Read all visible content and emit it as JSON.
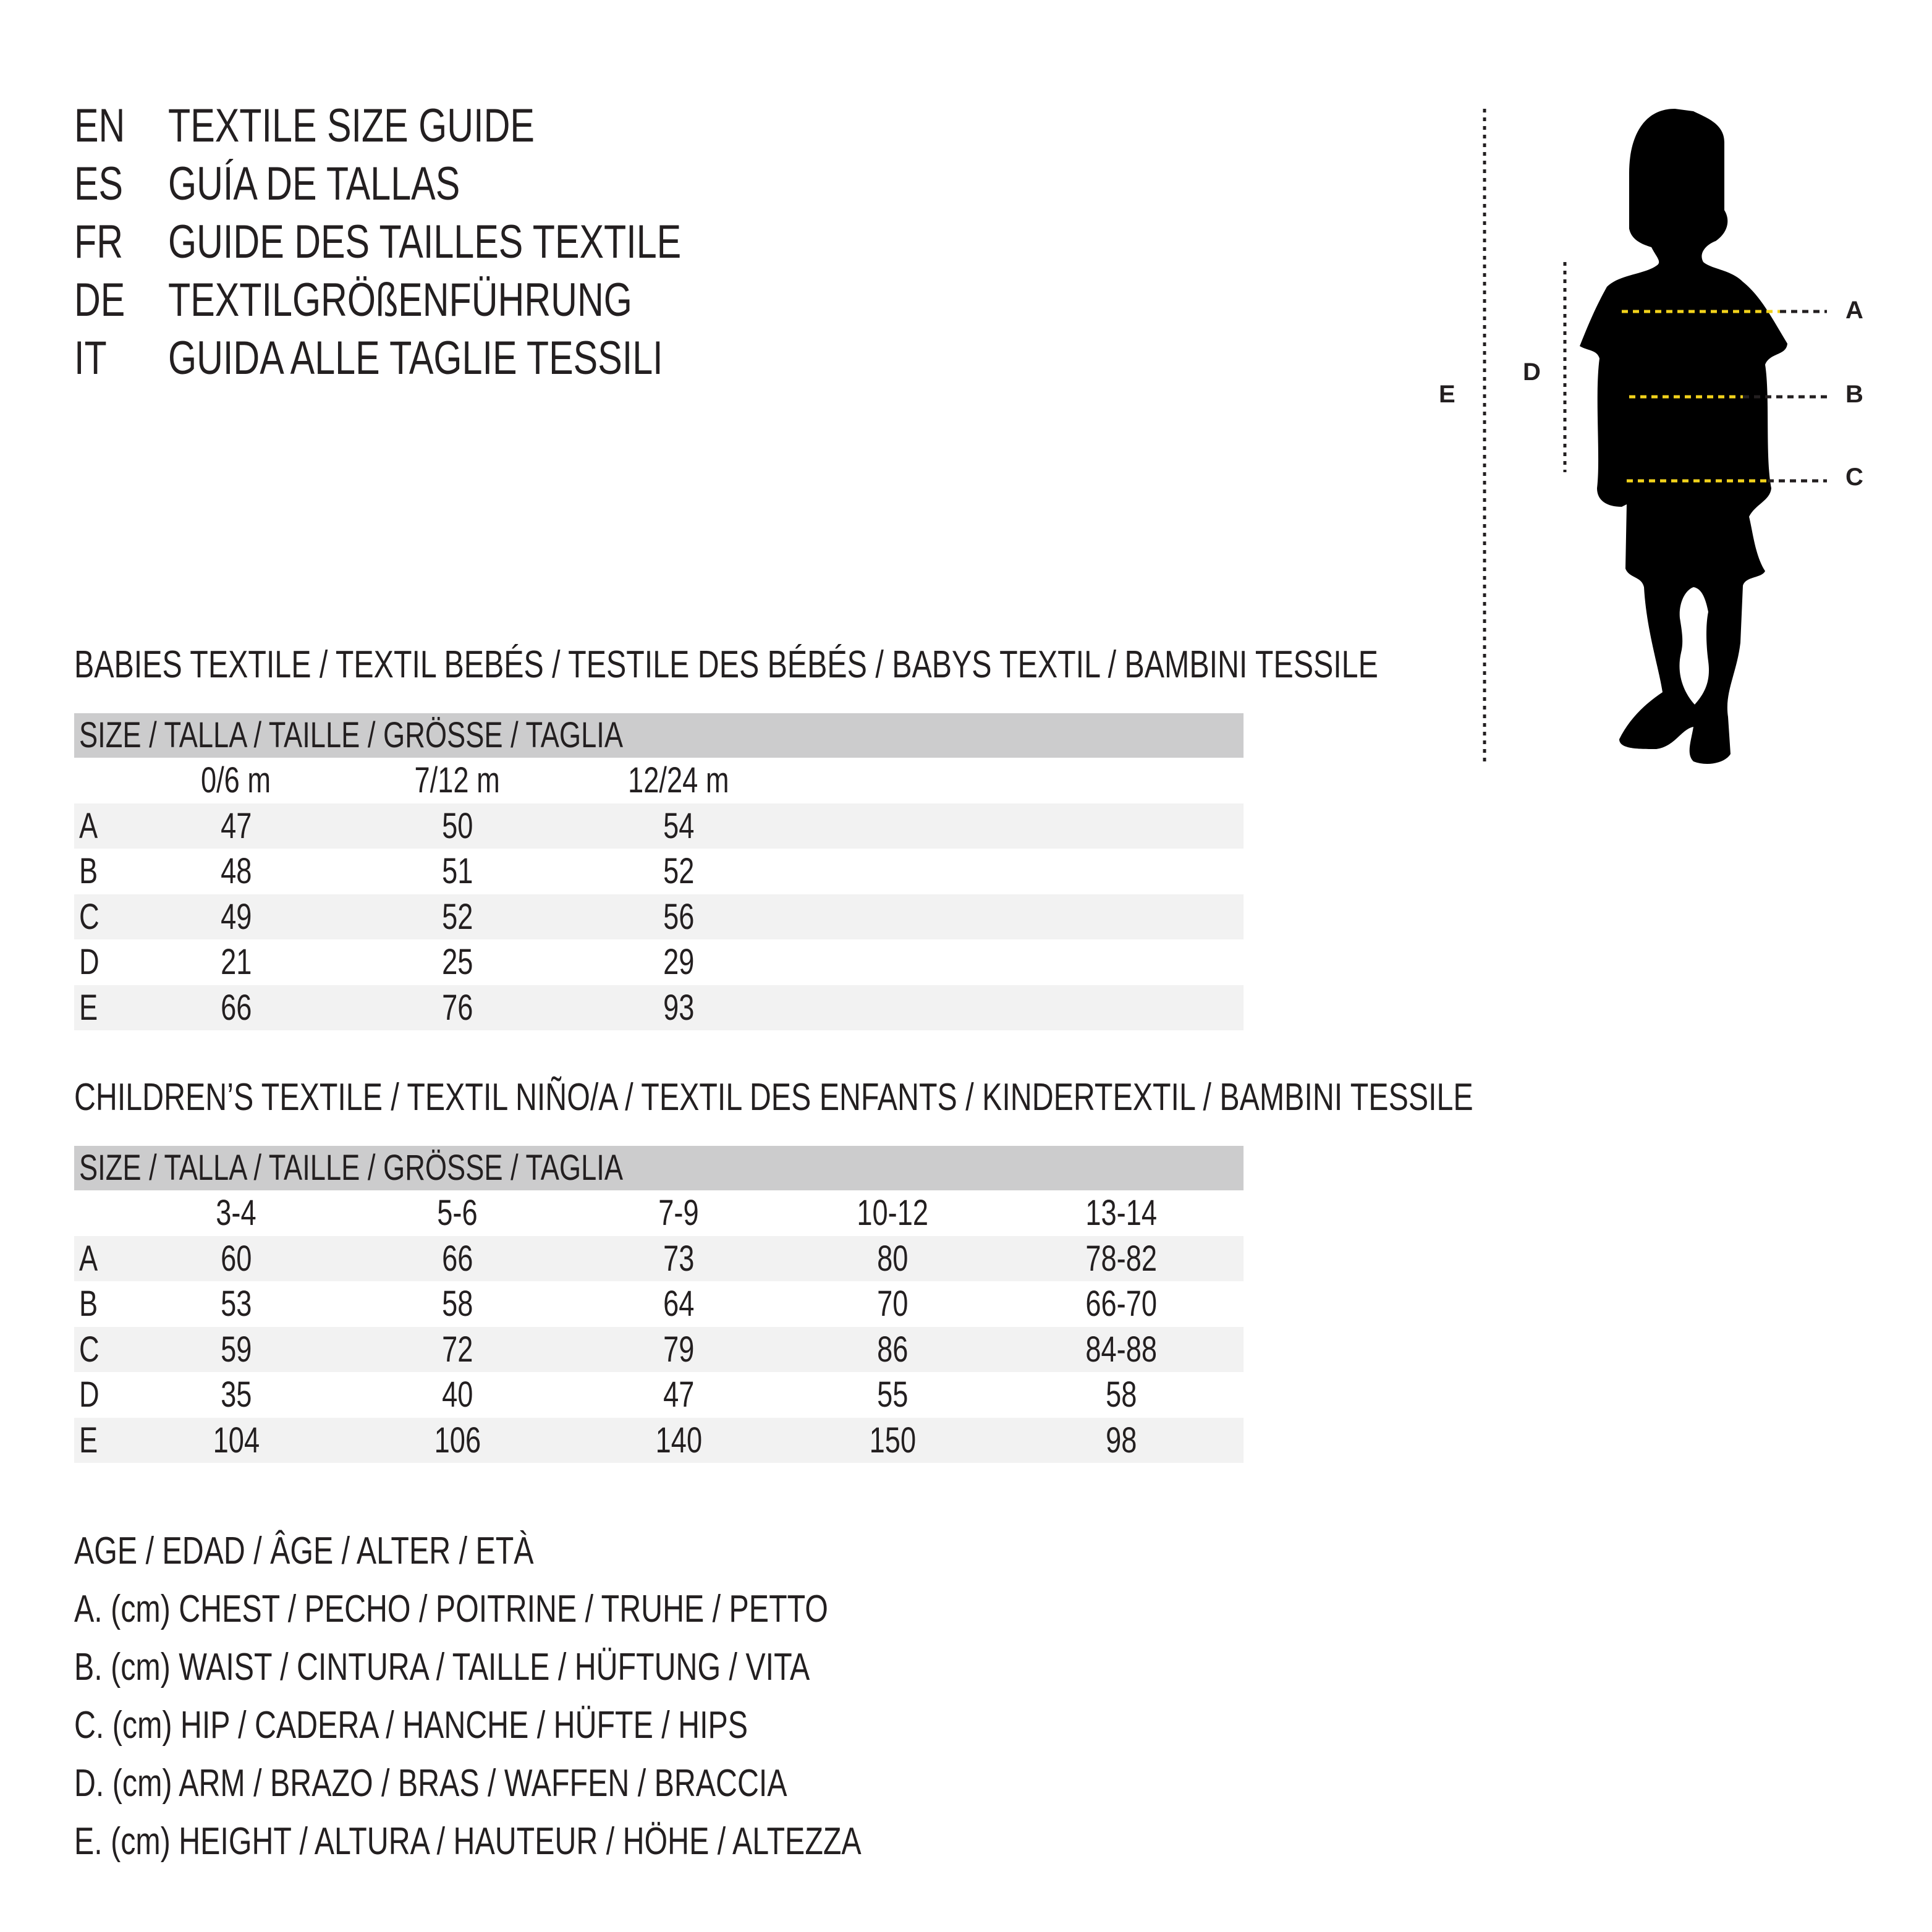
{
  "titles": [
    {
      "code": "EN",
      "text": "TEXTILE SIZE GUIDE"
    },
    {
      "code": "ES",
      "text": "GUÍA DE TALLAS"
    },
    {
      "code": "FR",
      "text": "GUIDE DES TAILLES TEXTILE"
    },
    {
      "code": "DE",
      "text": "TEXTILGRÖßENFÜHRUNG"
    },
    {
      "code": "IT",
      "text": "GUIDA ALLE TAGLIE TESSILI"
    }
  ],
  "babies": {
    "heading": "BABIES TEXTILE / TEXTIL BEBÉS / TESTILE DES BÉBÉS / BABYS TEXTIL / BAMBINI TESSILE",
    "size_header": "SIZE / TALLA / TAILLE / GRÖSSE / TAGLIA",
    "columns": [
      "0/6 m",
      "7/12 m",
      "12/24 m"
    ],
    "rows": [
      {
        "label": "A",
        "values": [
          "47",
          "50",
          "54"
        ]
      },
      {
        "label": "B",
        "values": [
          "48",
          "51",
          "52"
        ]
      },
      {
        "label": "C",
        "values": [
          "49",
          "52",
          "56"
        ]
      },
      {
        "label": "D",
        "values": [
          "21",
          "25",
          "29"
        ]
      },
      {
        "label": "E",
        "values": [
          "66",
          "76",
          "93"
        ]
      }
    ]
  },
  "children": {
    "heading": "CHILDREN’S TEXTILE / TEXTIL NIÑO/A / TEXTIL DES ENFANTS / KINDERTEXTIL / BAMBINI TESSILE",
    "size_header": "SIZE / TALLA / TAILLE / GRÖSSE / TAGLIA",
    "columns": [
      "3-4",
      "5-6",
      "7-9",
      "10-12",
      "13-14"
    ],
    "rows": [
      {
        "label": "A",
        "values": [
          "60",
          "66",
          "73",
          "80",
          "78-82"
        ]
      },
      {
        "label": "B",
        "values": [
          "53",
          "58",
          "64",
          "70",
          "66-70"
        ]
      },
      {
        "label": "C",
        "values": [
          "59",
          "72",
          "79",
          "86",
          "84-88"
        ]
      },
      {
        "label": "D",
        "values": [
          "35",
          "40",
          "47",
          "55",
          "58"
        ]
      },
      {
        "label": "E",
        "values": [
          "104",
          "106",
          "140",
          "150",
          "98"
        ]
      }
    ]
  },
  "legend": [
    "AGE / EDAD / ÂGE / ALTER / ETÀ",
    "A. (cm) CHEST / PECHO / POITRINE / TRUHE / PETTO",
    "B. (cm) WAIST / CINTURA / TAILLE / HÜFTUNG / VITA",
    "C. (cm) HIP / CADERA / HANCHE / HÜFTE / HIPS",
    "D. (cm) ARM / BRAZO / BRAS / WAFFEN / BRACCIA",
    "E. (cm) HEIGHT / ALTURA / HAUTEUR / HÖHE / ALTEZZA"
  ],
  "figure": {
    "labels": {
      "A": "A",
      "B": "B",
      "C": "C",
      "D": "D",
      "E": "E"
    },
    "colors": {
      "silhouette": "#000000",
      "measure_line": "#f2d21b",
      "guide_line": "#231f20"
    }
  }
}
